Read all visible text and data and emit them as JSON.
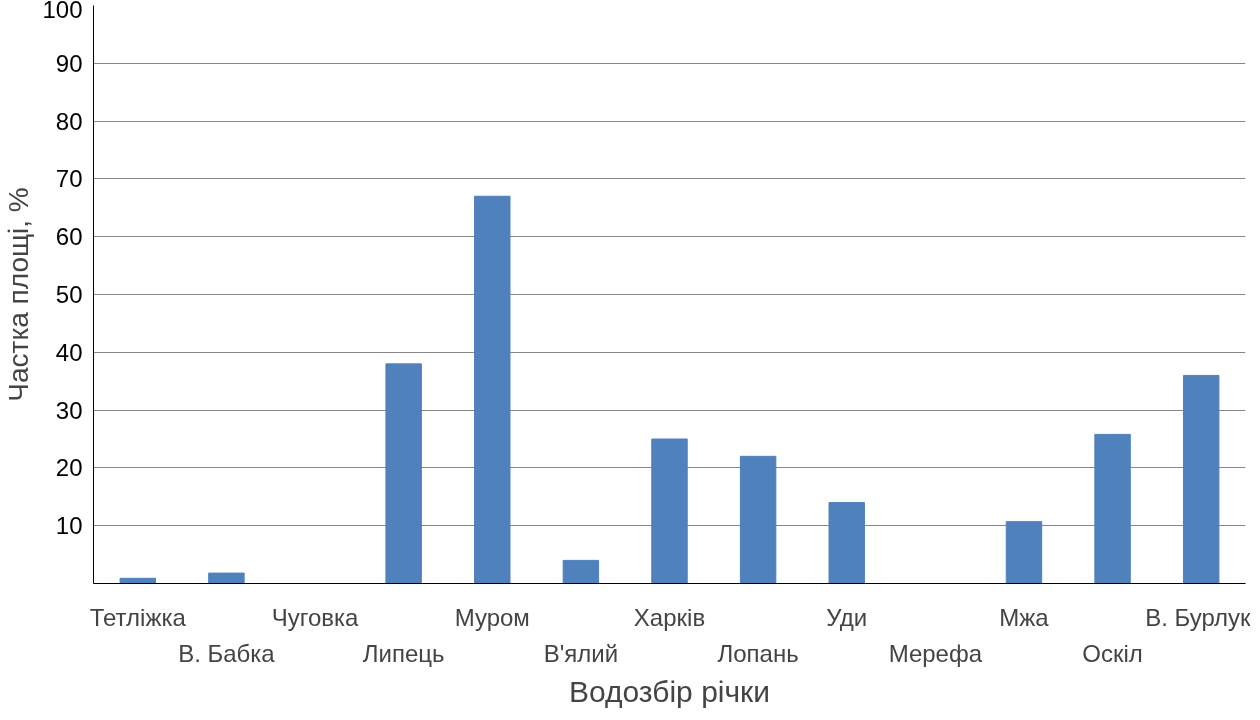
{
  "chart_data": {
    "type": "bar",
    "xlabel": "Водозбір річки",
    "ylabel": "Частка площі, %",
    "categories": [
      "Тетліжка",
      "В. Бабка",
      "Чуговка",
      "Липець",
      "Муром",
      "В'ялий",
      "Харків",
      "Лопань",
      "Уди",
      "Мерефа",
      "Мжа",
      "Оскіл",
      "В. Бурлук"
    ],
    "values": [
      0.9,
      1.8,
      0,
      38,
      67,
      4,
      25,
      22,
      14,
      0,
      10.7,
      25.8,
      36
    ],
    "color": "#4f81bd",
    "ylim": [
      0,
      100
    ],
    "yticks": [
      10,
      20,
      30,
      40,
      50,
      60,
      70,
      80,
      90,
      100
    ],
    "grid": "y"
  }
}
